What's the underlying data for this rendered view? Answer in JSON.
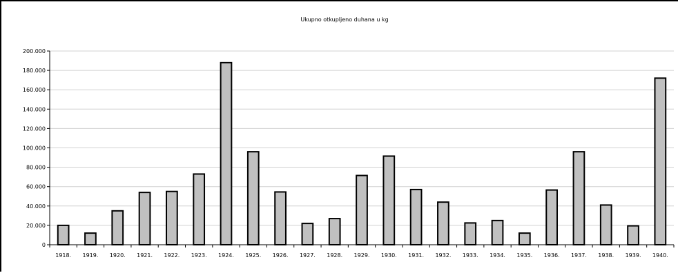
{
  "chart_data": {
    "type": "bar",
    "title": "Ukupno otkupljeno duhana u kg",
    "xlabel": "",
    "ylabel": "",
    "ylim": [
      0,
      200000
    ],
    "yticks": [
      0,
      20000,
      40000,
      60000,
      80000,
      100000,
      120000,
      140000,
      160000,
      180000,
      200000
    ],
    "ytick_labels": [
      "0",
      "20.000",
      "40.000",
      "60.000",
      "80.000",
      "100.000",
      "120.000",
      "140.000",
      "160.000",
      "180.000",
      "200.000"
    ],
    "grid": true,
    "legend": "none",
    "categories": [
      "1918.",
      "1919.",
      "1920.",
      "1921.",
      "1922.",
      "1923.",
      "1924.",
      "1925.",
      "1926.",
      "1927.",
      "1928.",
      "1929.",
      "1930.",
      "1931.",
      "1932.",
      "1933.",
      "1934.",
      "1935.",
      "1936.",
      "1937.",
      "1938.",
      "1939.",
      "1940."
    ],
    "values": [
      20000,
      12000,
      35000,
      54000,
      55000,
      73000,
      188000,
      96000,
      54500,
      22000,
      27000,
      71500,
      91500,
      57000,
      44000,
      22500,
      25000,
      12000,
      56500,
      96000,
      41000,
      19500,
      172000
    ],
    "colors": {
      "bar_fill": "#c0c0c0",
      "bar_stroke": "#000000",
      "grid": "#d0d0d0"
    }
  }
}
